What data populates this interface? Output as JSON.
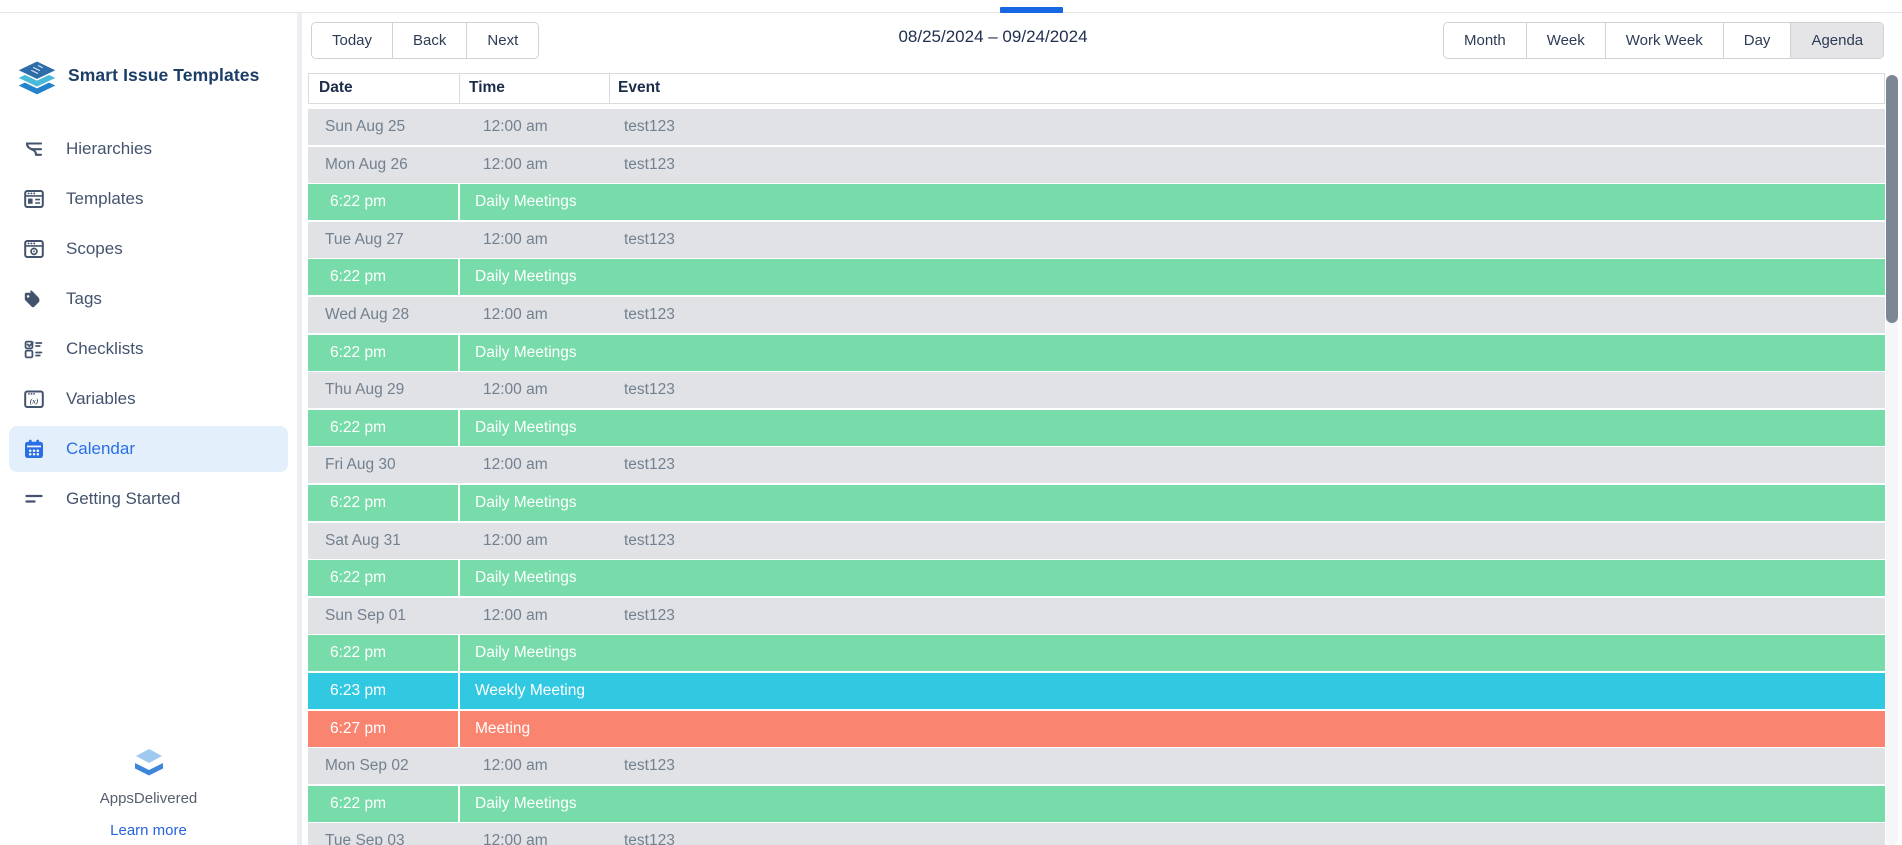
{
  "theme": {
    "accent_blue": "#2a6fe4",
    "active_item_bg": "#e4effc",
    "row_day_bg": "#e0e2e5",
    "row_green": "#77dcaa",
    "row_cyan": "#31c9e2",
    "row_salmon": "#f9846f",
    "scrollbar_thumb": "#7c8695",
    "top_indicator_blue": "#1766e2"
  },
  "sidebar": {
    "app_title": "Smart Issue Templates",
    "items": [
      {
        "id": "hierarchies",
        "label": "Hierarchies",
        "icon": "hierarchies-icon",
        "active": false
      },
      {
        "id": "templates",
        "label": "Templates",
        "icon": "templates-icon",
        "active": false
      },
      {
        "id": "scopes",
        "label": "Scopes",
        "icon": "scopes-icon",
        "active": false
      },
      {
        "id": "tags",
        "label": "Tags",
        "icon": "tags-icon",
        "active": false
      },
      {
        "id": "checklists",
        "label": "Checklists",
        "icon": "checklists-icon",
        "active": false
      },
      {
        "id": "variables",
        "label": "Variables",
        "icon": "variables-icon",
        "active": false
      },
      {
        "id": "calendar",
        "label": "Calendar",
        "icon": "calendar-icon",
        "active": true
      },
      {
        "id": "getting-started",
        "label": "Getting Started",
        "icon": "getting-started-icon",
        "active": false
      }
    ],
    "footer": {
      "brand": "AppsDelivered",
      "link_label": "Learn more"
    }
  },
  "toolbar": {
    "nav_buttons": [
      {
        "label": "Today"
      },
      {
        "label": "Back"
      },
      {
        "label": "Next"
      }
    ],
    "date_range": "08/25/2024 – 09/24/2024",
    "view_buttons": [
      {
        "label": "Month",
        "active": false
      },
      {
        "label": "Week",
        "active": false
      },
      {
        "label": "Work Week",
        "active": false
      },
      {
        "label": "Day",
        "active": false
      },
      {
        "label": "Agenda",
        "active": true
      }
    ]
  },
  "agenda": {
    "columns": [
      "Date",
      "Time",
      "Event"
    ],
    "rows": [
      {
        "type": "day",
        "date": "Sun Aug 25",
        "time": "12:00 am",
        "event": "test123"
      },
      {
        "type": "day",
        "date": "Mon Aug 26",
        "time": "12:00 am",
        "event": "test123"
      },
      {
        "type": "event",
        "color": "green",
        "time": "6:22 pm",
        "title": "Daily Meetings"
      },
      {
        "type": "day",
        "date": "Tue Aug 27",
        "time": "12:00 am",
        "event": "test123"
      },
      {
        "type": "event",
        "color": "green",
        "time": "6:22 pm",
        "title": "Daily Meetings"
      },
      {
        "type": "day",
        "date": "Wed Aug 28",
        "time": "12:00 am",
        "event": "test123"
      },
      {
        "type": "event",
        "color": "green",
        "time": "6:22 pm",
        "title": "Daily Meetings"
      },
      {
        "type": "day",
        "date": "Thu Aug 29",
        "time": "12:00 am",
        "event": "test123"
      },
      {
        "type": "event",
        "color": "green",
        "time": "6:22 pm",
        "title": "Daily Meetings"
      },
      {
        "type": "day",
        "date": "Fri Aug 30",
        "time": "12:00 am",
        "event": "test123"
      },
      {
        "type": "event",
        "color": "green",
        "time": "6:22 pm",
        "title": "Daily Meetings"
      },
      {
        "type": "day",
        "date": "Sat Aug 31",
        "time": "12:00 am",
        "event": "test123"
      },
      {
        "type": "event",
        "color": "green",
        "time": "6:22 pm",
        "title": "Daily Meetings"
      },
      {
        "type": "day",
        "date": "Sun Sep 01",
        "time": "12:00 am",
        "event": "test123"
      },
      {
        "type": "event",
        "color": "green",
        "time": "6:22 pm",
        "title": "Daily Meetings"
      },
      {
        "type": "event",
        "color": "cyan",
        "time": "6:23 pm",
        "title": "Weekly Meeting"
      },
      {
        "type": "event",
        "color": "salmon",
        "time": "6:27 pm",
        "title": "Meeting"
      },
      {
        "type": "day",
        "date": "Mon Sep 02",
        "time": "12:00 am",
        "event": "test123"
      },
      {
        "type": "event",
        "color": "green",
        "time": "6:22 pm",
        "title": "Daily Meetings"
      },
      {
        "type": "day",
        "date": "Tue Sep 03",
        "time": "12:00 am",
        "event": "test123"
      }
    ]
  }
}
